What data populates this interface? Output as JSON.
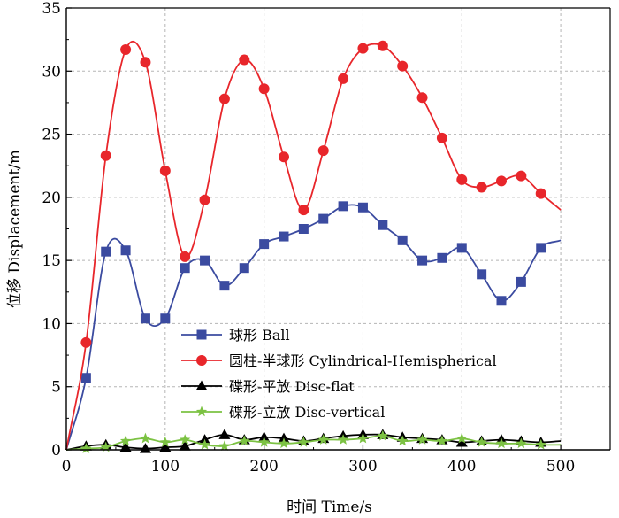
{
  "chart_data": {
    "type": "line",
    "xlabel": "时间 Time/s",
    "ylabel": "位移 Displacement/m",
    "xlim": [
      0,
      550
    ],
    "ylim": [
      0,
      35
    ],
    "xticks": [
      0,
      100,
      200,
      300,
      400,
      500
    ],
    "yticks": [
      0,
      5,
      10,
      15,
      20,
      25,
      30,
      35
    ],
    "grid": true,
    "legend_position": "center-left",
    "series": [
      {
        "name": "球形 Ball",
        "color": "#3b4ba0",
        "marker": "square",
        "x": [
          0,
          20,
          40,
          60,
          80,
          100,
          120,
          140,
          160,
          180,
          200,
          220,
          240,
          260,
          280,
          300,
          320,
          340,
          360,
          380,
          400,
          420,
          440,
          460,
          480,
          500
        ],
        "y": [
          0,
          5.7,
          15.7,
          15.8,
          10.4,
          10.4,
          14.4,
          15.0,
          13.0,
          14.4,
          16.3,
          16.9,
          17.5,
          18.3,
          19.3,
          19.2,
          17.8,
          16.6,
          15.0,
          15.2,
          16.0,
          13.9,
          11.8,
          13.3,
          16.0,
          16.6
        ],
        "markers_x": [
          20,
          40,
          60,
          80,
          100,
          120,
          140,
          160,
          180,
          200,
          220,
          240,
          260,
          280,
          300,
          320,
          340,
          360,
          380,
          400,
          420,
          440,
          460,
          480
        ]
      },
      {
        "name": "圆柱-半球形 Cylindrical-Hemispherical",
        "color": "#e8262b",
        "marker": "circle",
        "x": [
          0,
          20,
          40,
          60,
          80,
          100,
          120,
          140,
          160,
          180,
          200,
          220,
          240,
          260,
          280,
          300,
          320,
          340,
          360,
          380,
          400,
          420,
          440,
          460,
          480,
          500
        ],
        "y": [
          0,
          8.5,
          23.3,
          31.7,
          30.7,
          22.1,
          15.3,
          19.8,
          27.8,
          30.9,
          28.6,
          23.2,
          19.0,
          23.7,
          29.4,
          31.8,
          32.0,
          30.4,
          27.9,
          24.7,
          21.4,
          20.8,
          21.3,
          21.7,
          20.3,
          19.0
        ],
        "markers_x": [
          20,
          40,
          60,
          80,
          100,
          120,
          140,
          160,
          180,
          200,
          220,
          240,
          260,
          280,
          300,
          320,
          340,
          360,
          380,
          400,
          420,
          440,
          460,
          480
        ]
      },
      {
        "name": "碟形-平放 Disc-flat",
        "color": "#000000",
        "marker": "triangle",
        "x": [
          0,
          20,
          40,
          60,
          80,
          100,
          120,
          140,
          160,
          180,
          200,
          220,
          240,
          260,
          280,
          300,
          320,
          340,
          360,
          380,
          400,
          420,
          440,
          460,
          480,
          500
        ],
        "y": [
          0,
          0.3,
          0.4,
          0.2,
          0.1,
          0.2,
          0.3,
          0.8,
          1.2,
          0.8,
          1.0,
          0.9,
          0.7,
          0.9,
          1.1,
          1.2,
          1.2,
          1.0,
          0.9,
          0.8,
          0.6,
          0.7,
          0.8,
          0.7,
          0.6,
          0.7
        ],
        "markers_x": [
          20,
          40,
          60,
          80,
          100,
          120,
          140,
          160,
          180,
          200,
          220,
          240,
          260,
          280,
          300,
          320,
          340,
          360,
          380,
          400,
          420,
          440,
          460,
          480
        ]
      },
      {
        "name": "碟形-立放 Disc-vertical",
        "color": "#7cc243",
        "marker": "star",
        "x": [
          0,
          20,
          40,
          60,
          80,
          100,
          120,
          140,
          160,
          180,
          200,
          220,
          240,
          260,
          280,
          300,
          320,
          340,
          360,
          380,
          400,
          420,
          440,
          460,
          480,
          500
        ],
        "y": [
          0,
          0.1,
          0.2,
          0.7,
          0.9,
          0.6,
          0.8,
          0.4,
          0.3,
          0.7,
          0.6,
          0.5,
          0.6,
          0.8,
          0.8,
          0.9,
          1.1,
          0.7,
          0.8,
          0.7,
          0.9,
          0.6,
          0.5,
          0.5,
          0.4,
          0.4
        ],
        "markers_x": [
          20,
          40,
          60,
          80,
          100,
          120,
          140,
          160,
          180,
          200,
          220,
          240,
          260,
          280,
          300,
          320,
          340,
          360,
          380,
          400,
          420,
          440,
          460,
          480
        ]
      }
    ]
  }
}
